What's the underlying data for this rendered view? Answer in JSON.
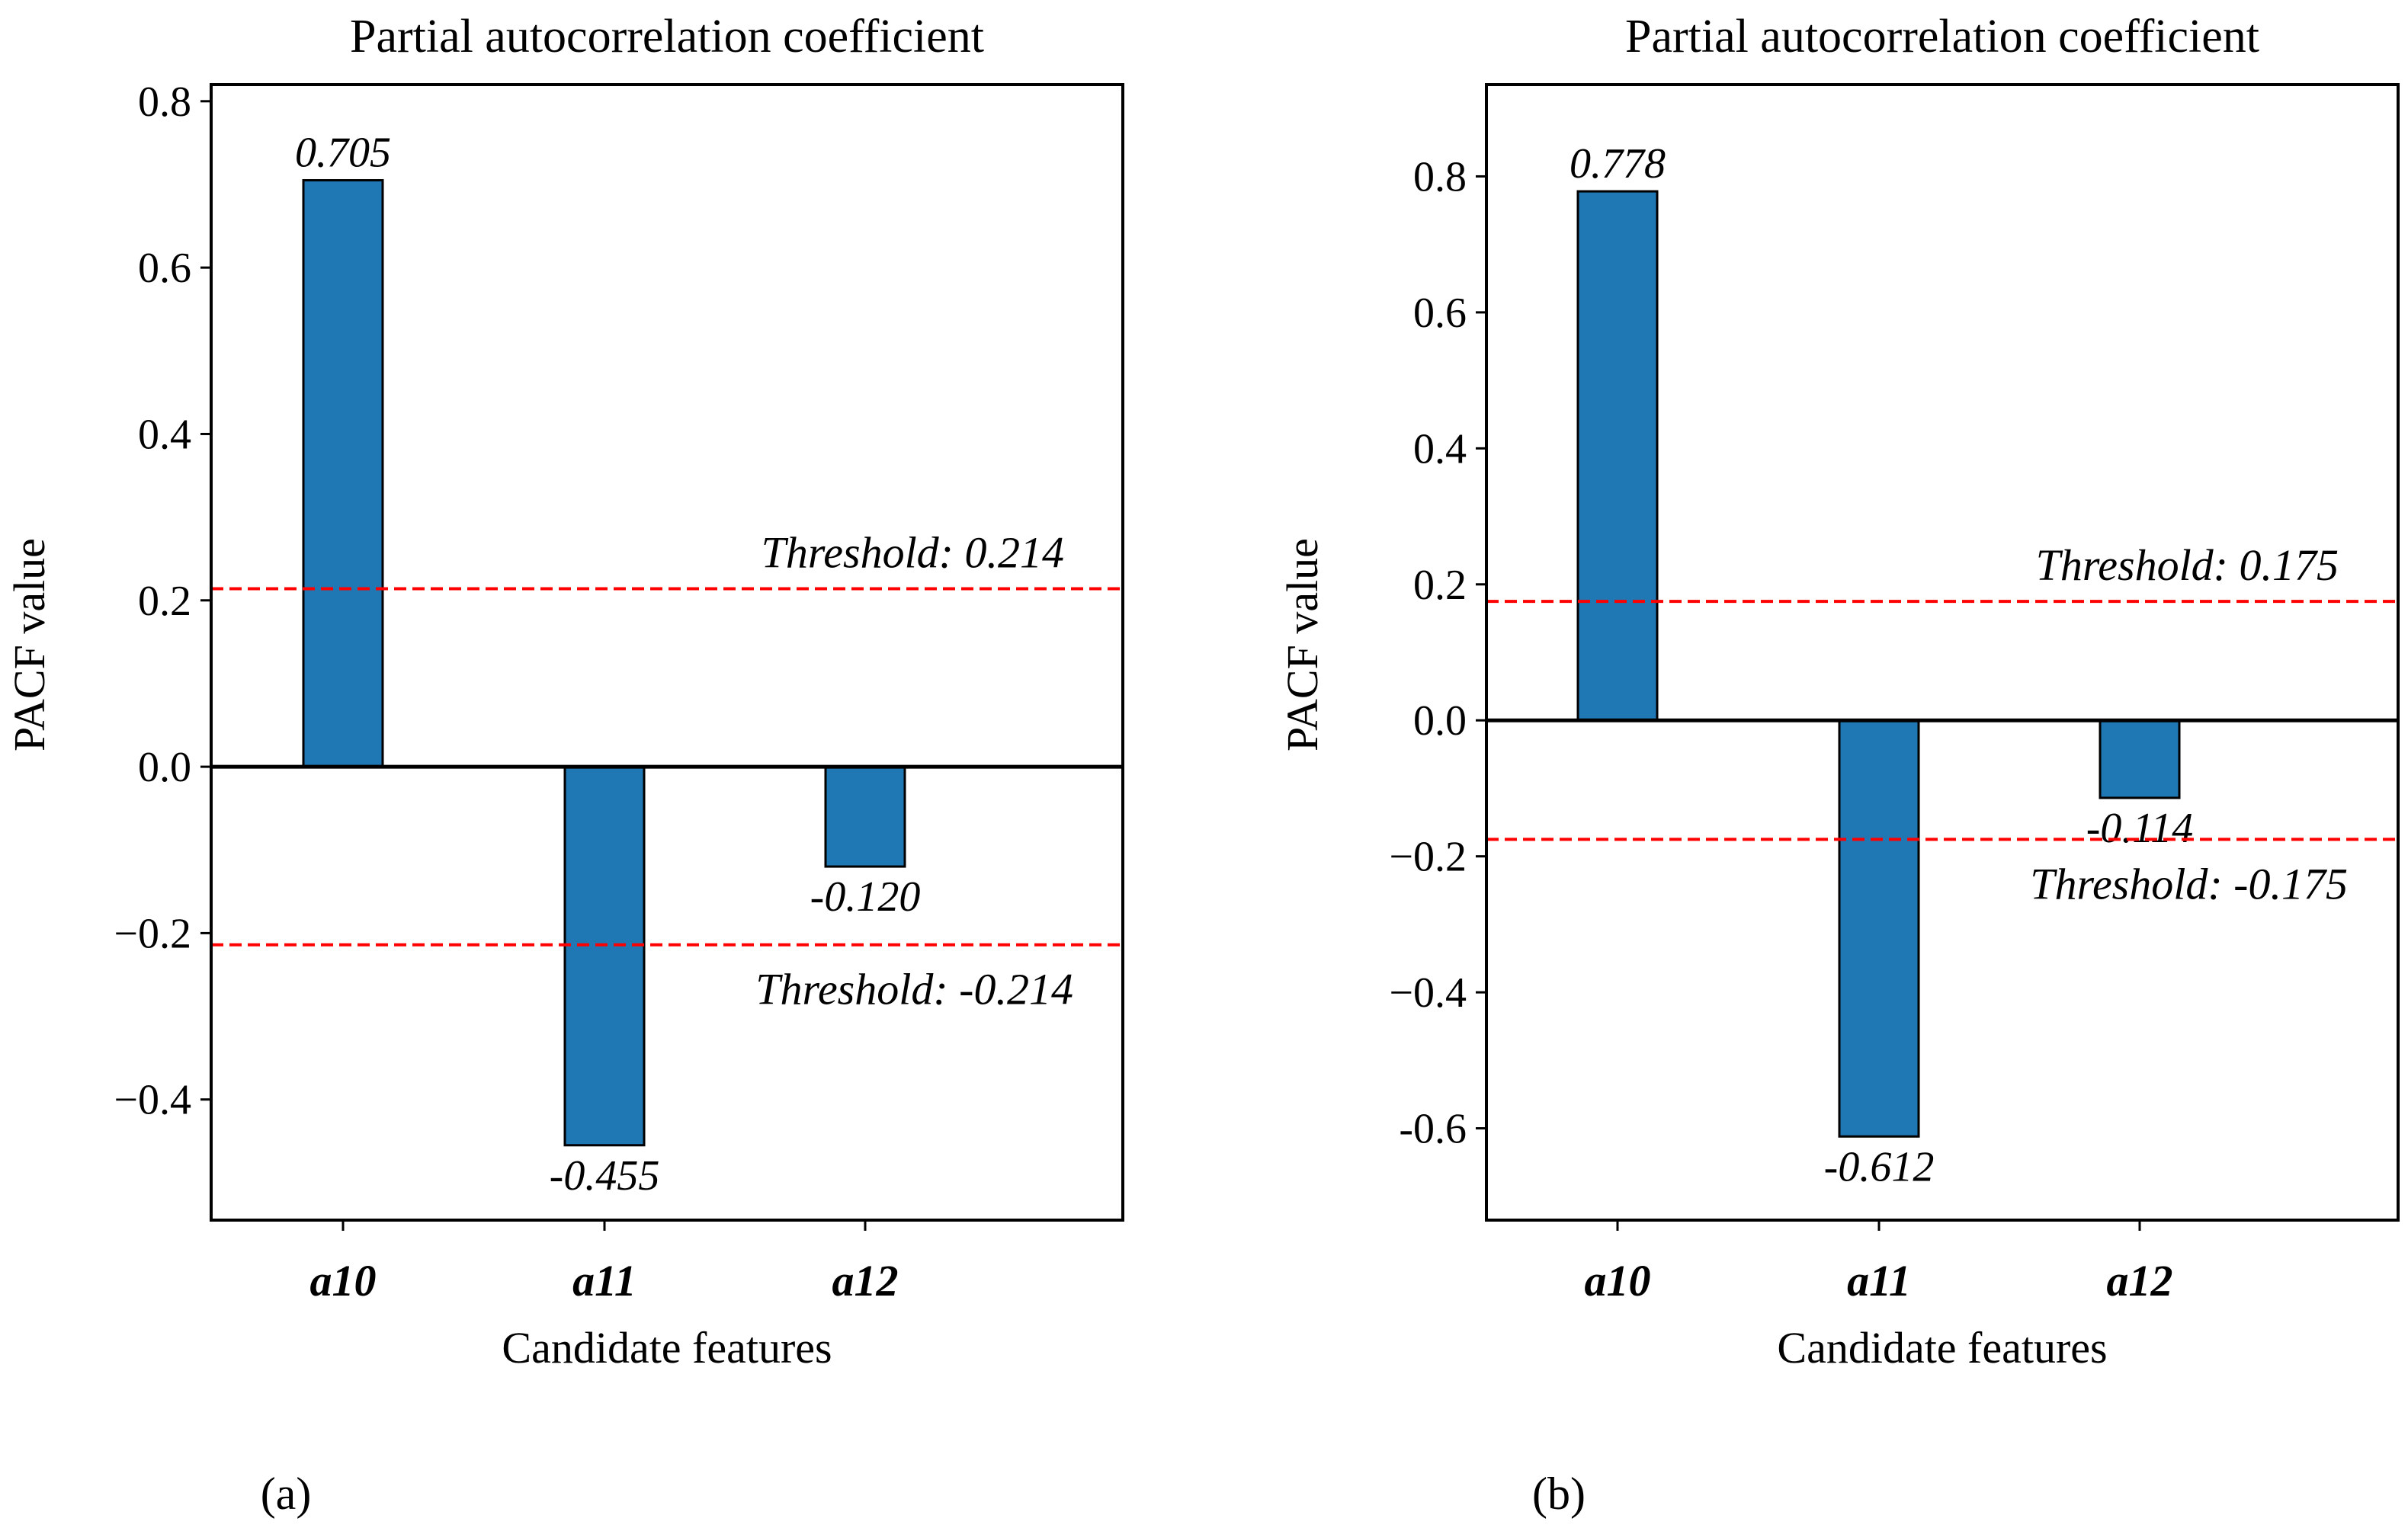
{
  "colors": {
    "bar_fill": "#1f77b4",
    "bar_edge": "#000000",
    "threshold_line": "#ff0000",
    "zero_line": "#000000"
  },
  "chart_data": [
    {
      "type": "bar",
      "panel_label": "(a)",
      "title": "Partial autocorrelation coefficient",
      "xlabel": "Candidate features",
      "ylabel": "PACF value",
      "categories": [
        "a10",
        "a11",
        "a12"
      ],
      "values": [
        0.705,
        -0.455,
        -0.12
      ],
      "value_labels": [
        "0.705",
        "-0.455",
        "-0.120"
      ],
      "ylim": [
        -0.545,
        0.82
      ],
      "yticks": [
        -0.4,
        -0.2,
        0.0,
        0.2,
        0.4,
        0.6,
        0.8
      ],
      "ytick_labels": [
        "−0.4",
        "−0.2",
        "0.0",
        "0.2",
        "0.4",
        "0.6",
        "0.8"
      ],
      "thresholds": [
        {
          "value": 0.214,
          "label": "Threshold: 0.214"
        },
        {
          "value": -0.214,
          "label": "Threshold: -0.214"
        }
      ],
      "grid": false
    },
    {
      "type": "bar",
      "panel_label": "(b)",
      "title": "Partial autocorrelation coefficient",
      "xlabel": "Candidate features",
      "ylabel": "PACF value",
      "categories": [
        "a10",
        "a11",
        "a12"
      ],
      "values": [
        0.778,
        -0.612,
        -0.114
      ],
      "value_labels": [
        "0.778",
        "-0.612",
        "-0.114"
      ],
      "ylim": [
        -0.735,
        0.935
      ],
      "yticks": [
        -0.6,
        -0.4,
        -0.2,
        0.0,
        0.2,
        0.4,
        0.6,
        0.8
      ],
      "ytick_labels": [
        "-0.6",
        "−0.4",
        "−0.2",
        "0.0",
        "0.2",
        "0.4",
        "0.6",
        "0.8"
      ],
      "thresholds": [
        {
          "value": 0.175,
          "label": "Threshold: 0.175"
        },
        {
          "value": -0.175,
          "label": "Threshold: -0.175"
        }
      ],
      "grid": false
    }
  ]
}
